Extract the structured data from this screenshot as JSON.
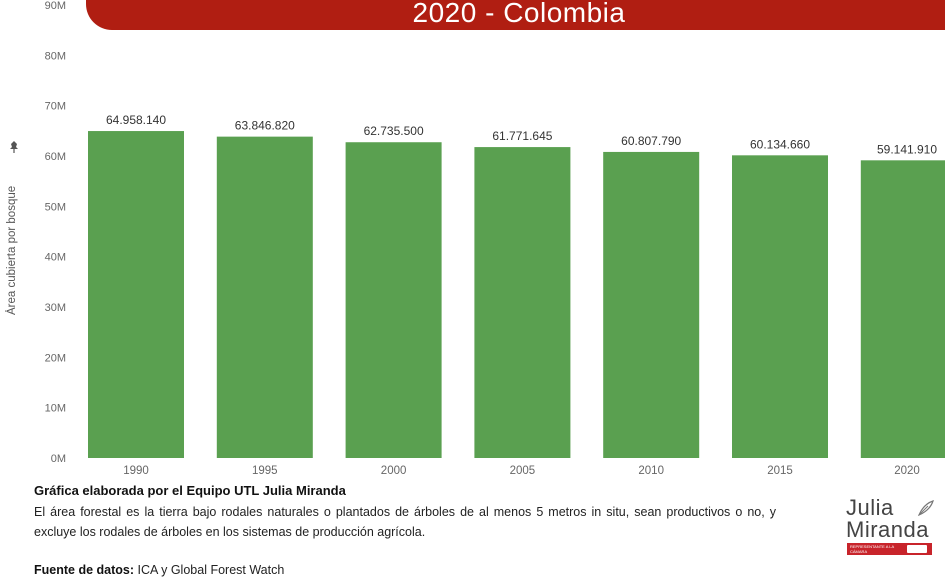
{
  "header": {
    "title": "2020 - Colombia"
  },
  "chart_data": {
    "type": "bar",
    "categories": [
      "1990",
      "1995",
      "2000",
      "2005",
      "2010",
      "2015",
      "2020"
    ],
    "values": [
      64958140,
      63846820,
      62735500,
      61771645,
      60807790,
      60134660,
      59141910
    ],
    "data_labels": [
      "64.958.140",
      "63.846.820",
      "62.735.500",
      "61.771.645",
      "60.807.790",
      "60.134.660",
      "59.141.910"
    ],
    "ylabel": "Área cubierta por bosque",
    "ylim": [
      0,
      90000000
    ],
    "yticks": [
      0,
      10000000,
      20000000,
      30000000,
      40000000,
      50000000,
      60000000,
      70000000,
      80000000,
      90000000
    ],
    "ytick_labels": [
      "0M",
      "10M",
      "20M",
      "30M",
      "40M",
      "50M",
      "60M",
      "70M",
      "80M",
      "90M"
    ],
    "bar_color": "#5aa050",
    "grid": false,
    "legend": "none"
  },
  "caption": {
    "title": "Gráfica elaborada por el Equipo UTL Julia Miranda",
    "body": "El área forestal es la tierra bajo rodales naturales o plantados de árboles de al menos 5 metros in situ, sean productivos o no, y excluye los rodales de árboles en los sistemas de producción agrícola."
  },
  "source": {
    "label": "Fuente de datos:",
    "text": " ICA y Global Forest Watch"
  },
  "logo": {
    "line1": "Julia",
    "line2": "Miranda",
    "badge_text": "REPRESENTANTE A LA CÁMARA",
    "accent_color": "#c8242b"
  },
  "colors": {
    "banner": "#b01e12",
    "bars": "#5aa050"
  }
}
